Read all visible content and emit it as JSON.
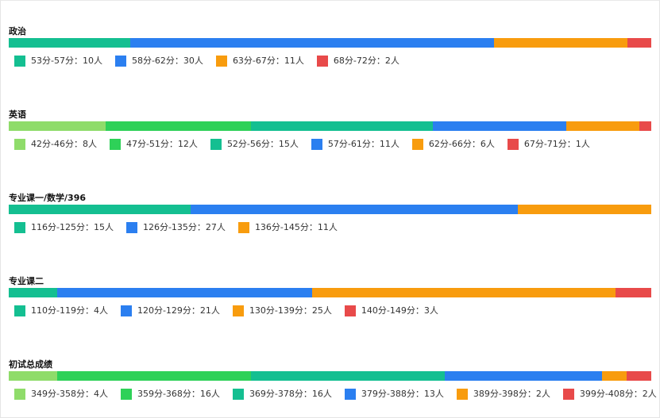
{
  "colors": {
    "light_green": "#8fdc6a",
    "green": "#2ed158",
    "teal": "#14bf91",
    "blue": "#2b7ff0",
    "orange": "#f89c0e",
    "red": "#e84a4a"
  },
  "chart_data": [
    {
      "type": "bar",
      "orientation": "horizontal-stacked",
      "title": "政治",
      "legend_position": "bottom",
      "grid": false,
      "categories": [
        "53分-57分",
        "58分-62分",
        "63分-67分",
        "68分-72分"
      ],
      "values": [
        10,
        30,
        11,
        2
      ],
      "unit": "人",
      "colors": [
        "#14bf91",
        "#2b7ff0",
        "#f89c0e",
        "#e84a4a"
      ],
      "labels": [
        "53分-57分：10人",
        "58分-62分：30人",
        "63分-67分：11人",
        "68分-72分：2人"
      ]
    },
    {
      "type": "bar",
      "orientation": "horizontal-stacked",
      "title": "英语",
      "legend_position": "bottom",
      "grid": false,
      "categories": [
        "42分-46分",
        "47分-51分",
        "52分-56分",
        "57分-61分",
        "62分-66分",
        "67分-71分"
      ],
      "values": [
        8,
        12,
        15,
        11,
        6,
        1
      ],
      "unit": "人",
      "colors": [
        "#8fdc6a",
        "#2ed158",
        "#14bf91",
        "#2b7ff0",
        "#f89c0e",
        "#e84a4a"
      ],
      "labels": [
        "42分-46分：8人",
        "47分-51分：12人",
        "52分-56分：15人",
        "57分-61分：11人",
        "62分-66分：6人",
        "67分-71分：1人"
      ]
    },
    {
      "type": "bar",
      "orientation": "horizontal-stacked",
      "title": "专业课一/数学/396",
      "legend_position": "bottom",
      "grid": false,
      "categories": [
        "116分-125分",
        "126分-135分",
        "136分-145分"
      ],
      "values": [
        15,
        27,
        11
      ],
      "unit": "人",
      "colors": [
        "#14bf91",
        "#2b7ff0",
        "#f89c0e"
      ],
      "labels": [
        "116分-125分：15人",
        "126分-135分：27人",
        "136分-145分：11人"
      ]
    },
    {
      "type": "bar",
      "orientation": "horizontal-stacked",
      "title": "专业课二",
      "legend_position": "bottom",
      "grid": false,
      "categories": [
        "110分-119分",
        "120分-129分",
        "130分-139分",
        "140分-149分"
      ],
      "values": [
        4,
        21,
        25,
        3
      ],
      "unit": "人",
      "colors": [
        "#14bf91",
        "#2b7ff0",
        "#f89c0e",
        "#e84a4a"
      ],
      "labels": [
        "110分-119分：4人",
        "120分-129分：21人",
        "130分-139分：25人",
        "140分-149分：3人"
      ]
    },
    {
      "type": "bar",
      "orientation": "horizontal-stacked",
      "title": "初试总成绩",
      "legend_position": "bottom",
      "grid": false,
      "categories": [
        "349分-358分",
        "359分-368分",
        "369分-378分",
        "379分-388分",
        "389分-398分",
        "399分-408分"
      ],
      "values": [
        4,
        16,
        16,
        13,
        2,
        2
      ],
      "unit": "人",
      "colors": [
        "#8fdc6a",
        "#2ed158",
        "#14bf91",
        "#2b7ff0",
        "#f89c0e",
        "#e84a4a"
      ],
      "labels": [
        "349分-358分：4人",
        "359分-368分：16人",
        "369分-378分：16人",
        "379分-388分：13人",
        "389分-398分：2人",
        "399分-408分：2人"
      ]
    }
  ]
}
